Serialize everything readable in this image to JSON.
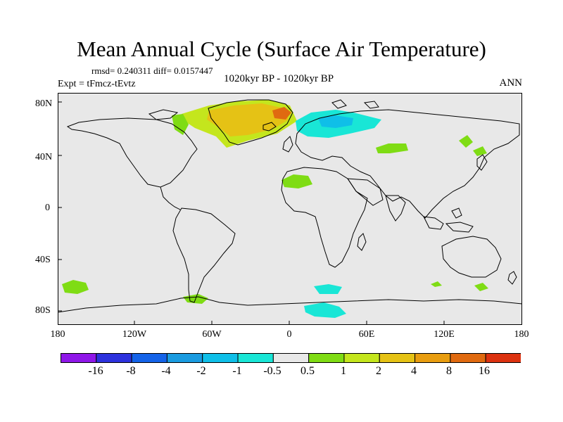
{
  "title": "Mean Annual Cycle (Surface Air Temperature)",
  "stats": {
    "text": "rmsd= 0.240311 diff= 0.0157447"
  },
  "experiment": "Expt = tFmcz-tEvtz",
  "period": "1020kyr BP - 1020kyr BP",
  "season": "ANN",
  "axes": {
    "y_ticks": [
      "80N",
      "40N",
      "0",
      "40S",
      "80S"
    ],
    "x_ticks": [
      "180",
      "120W",
      "60W",
      "0",
      "60E",
      "120E",
      "180"
    ]
  },
  "colors": {
    "background": "#e8e8e8",
    "coast": "#000000",
    "levels": [
      "#8f17e8",
      "#2d32dd",
      "#1463e8",
      "#1a9be0",
      "#0fbfe8",
      "#19e6d6",
      "#e8e8e8",
      "#7fdc14",
      "#c4e61d",
      "#e5c215",
      "#e89d10",
      "#e06a10",
      "#dc3210"
    ]
  },
  "colorbar": {
    "labels": [
      "-16",
      "-8",
      "-4",
      "-2",
      "-1",
      "-0.5",
      "0.5",
      "1",
      "2",
      "4",
      "8",
      "16"
    ]
  },
  "anomalies": [
    {
      "name": "greenland-warm",
      "level": 8
    },
    {
      "name": "greenland-core",
      "level": 9
    },
    {
      "name": "greenland-hotspot",
      "level": 11
    },
    {
      "name": "baffin-warm",
      "level": 7
    },
    {
      "name": "scandinavia-cold",
      "level": 5
    },
    {
      "name": "barents-cold",
      "level": 4
    },
    {
      "name": "siberia-warm",
      "level": 7
    },
    {
      "name": "kamchatka-warm",
      "level": 7
    },
    {
      "name": "sahara-warm",
      "level": 7
    },
    {
      "name": "southern-ocean-cold",
      "level": 5
    },
    {
      "name": "antarctica-cold",
      "level": 5
    },
    {
      "name": "south-pacific-warm",
      "level": 7
    }
  ]
}
